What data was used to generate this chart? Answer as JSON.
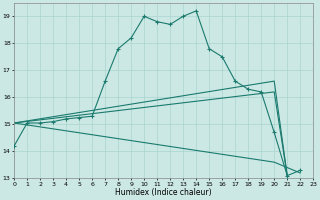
{
  "xlabel": "Humidex (Indice chaleur)",
  "xlim": [
    0,
    23
  ],
  "ylim": [
    13,
    19.5
  ],
  "yticks": [
    13,
    14,
    15,
    16,
    17,
    18,
    19
  ],
  "xticks": [
    0,
    1,
    2,
    3,
    4,
    5,
    6,
    7,
    8,
    9,
    10,
    11,
    12,
    13,
    14,
    15,
    16,
    17,
    18,
    19,
    20,
    21,
    22,
    23
  ],
  "bg_color": "#cce8e4",
  "grid_color": "#aad4cf",
  "line_color": "#1a7a6e",
  "curve1_x": [
    0,
    1,
    2,
    3,
    4,
    5,
    6,
    7,
    8,
    9,
    10,
    11,
    12,
    13,
    14,
    15,
    16,
    17,
    18,
    19,
    20,
    21,
    22
  ],
  "curve1_y": [
    14.2,
    15.05,
    15.05,
    15.1,
    15.2,
    15.25,
    15.3,
    16.6,
    17.8,
    18.2,
    19.0,
    18.8,
    18.7,
    19.0,
    19.2,
    17.8,
    17.5,
    16.6,
    16.3,
    16.2,
    14.7,
    13.1,
    13.3
  ],
  "line2_x": [
    0,
    20,
    21
  ],
  "line2_y": [
    15.05,
    16.6,
    13.1
  ],
  "line3_x": [
    0,
    20,
    21
  ],
  "line3_y": [
    15.05,
    16.2,
    13.1
  ],
  "line4_x": [
    0,
    20,
    22
  ],
  "line4_y": [
    15.05,
    13.6,
    13.2
  ]
}
